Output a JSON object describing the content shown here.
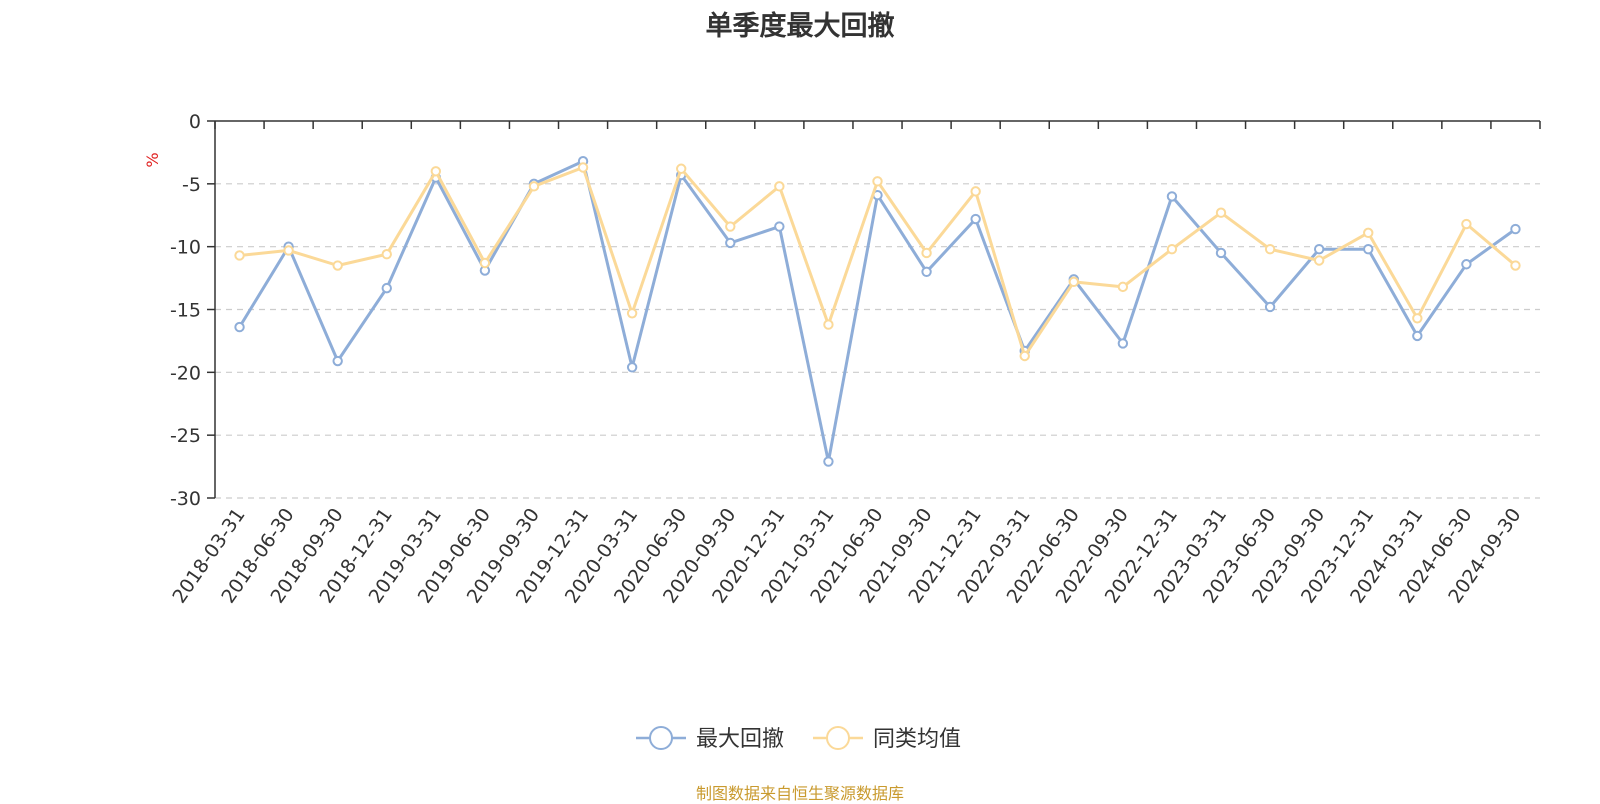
{
  "chart_data": {
    "type": "line",
    "title": "单季度最大回撤",
    "ylabel": "%",
    "ylim": [
      -30,
      0
    ],
    "yticks": [
      0,
      -5,
      -10,
      -15,
      -20,
      -25,
      -30
    ],
    "grid": true,
    "legend_position": "bottom-center",
    "categories": [
      "2018-03-31",
      "2018-06-30",
      "2018-09-30",
      "2018-12-31",
      "2019-03-31",
      "2019-06-30",
      "2019-09-30",
      "2019-12-31",
      "2020-03-31",
      "2020-06-30",
      "2020-09-30",
      "2020-12-31",
      "2021-03-31",
      "2021-06-30",
      "2021-09-30",
      "2021-12-31",
      "2022-03-31",
      "2022-06-30",
      "2022-09-30",
      "2022-12-31",
      "2023-03-31",
      "2023-06-30",
      "2023-09-30",
      "2023-12-31",
      "2024-03-31",
      "2024-06-30",
      "2024-09-30"
    ],
    "series": [
      {
        "name": "最大回撤",
        "color": "#8eadd8",
        "values": [
          -16.4,
          -10.0,
          -19.1,
          -13.3,
          -4.5,
          -11.9,
          -5.0,
          -3.2,
          -19.6,
          -4.3,
          -9.7,
          -8.4,
          -27.1,
          -5.9,
          -12.0,
          -7.8,
          -18.3,
          -12.6,
          -17.7,
          -6.0,
          -10.5,
          -14.8,
          -10.2,
          -10.2,
          -17.1,
          -11.4,
          -8.6
        ]
      },
      {
        "name": "同类均值",
        "color": "#fbd998",
        "values": [
          -10.7,
          -10.3,
          -11.5,
          -10.6,
          -4.0,
          -11.3,
          -5.2,
          -3.7,
          -15.3,
          -3.8,
          -8.4,
          -5.2,
          -16.2,
          -4.8,
          -10.5,
          -5.6,
          -18.7,
          -12.8,
          -13.2,
          -10.2,
          -7.3,
          -10.2,
          -11.1,
          -8.9,
          -15.7,
          -8.2,
          -11.5
        ]
      }
    ]
  },
  "footer": {
    "source": "制图数据来自恒生聚源数据库"
  }
}
